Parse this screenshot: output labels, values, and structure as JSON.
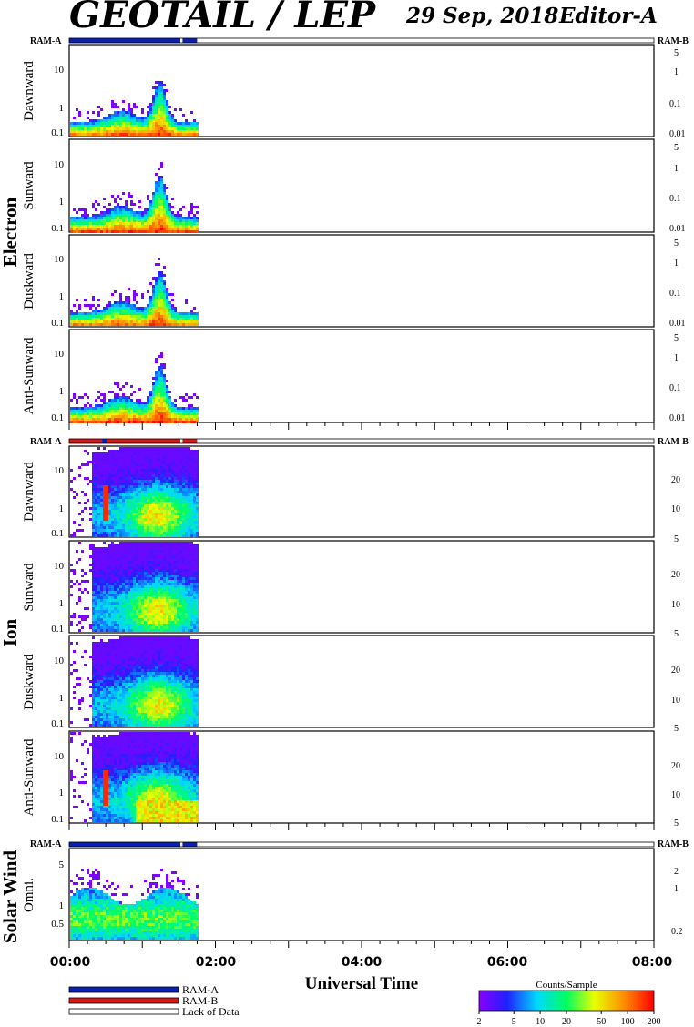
{
  "header": {
    "title": "GEOTAIL / LEP",
    "date": "29 Sep, 2018",
    "editor": "Editor-A"
  },
  "colors": {
    "ram_a": "#0a1fb4",
    "ram_b": "#d81818",
    "lack": "#ffffff"
  },
  "chart_data": {
    "type": "heatmap",
    "x_axis": {
      "label": "Universal Time",
      "range_hours": [
        0,
        8
      ],
      "tick_labels": [
        "00:00",
        "02:00",
        "04:00",
        "06:00",
        "08:00"
      ],
      "data_end_hour": 1.75
    },
    "groups": [
      {
        "name": "Electron",
        "ram_bar": {
          "left": "RAM-A",
          "right": "RAM-B",
          "segments": [
            {
              "start": 0.0,
              "end": 1.52,
              "mode": "RAM-A"
            },
            {
              "start": 1.52,
              "end": 1.55,
              "mode": "Lack of Data"
            },
            {
              "start": 1.55,
              "end": 1.75,
              "mode": "RAM-A"
            },
            {
              "start": 1.75,
              "end": 8.0,
              "mode": "Lack of Data"
            }
          ]
        },
        "panels": [
          {
            "label": "Dawnward",
            "left_ticks": [
              "0.1",
              "1",
              "10"
            ],
            "right_ticks": [
              "0.01",
              "0.1",
              "1",
              "5"
            ]
          },
          {
            "label": "Sunward",
            "left_ticks": [
              "0.1",
              "1",
              "10"
            ],
            "right_ticks": [
              "0.01",
              "0.1",
              "1",
              "5"
            ]
          },
          {
            "label": "Duskward",
            "left_ticks": [
              "0.1",
              "1",
              "10"
            ],
            "right_ticks": [
              "0.01",
              "0.1",
              "1",
              "5"
            ]
          },
          {
            "label": "Anti-Sunward",
            "left_ticks": [
              "0.1",
              "1",
              "10"
            ],
            "right_ticks": [
              "0.01",
              "0.1",
              "1",
              "5"
            ]
          }
        ]
      },
      {
        "name": "Ion",
        "ram_bar": {
          "left": "RAM-A",
          "right": "RAM-B",
          "segments": [
            {
              "start": 0.0,
              "end": 0.45,
              "mode": "RAM-B"
            },
            {
              "start": 0.45,
              "end": 0.52,
              "mode": "RAM-A"
            },
            {
              "start": 0.52,
              "end": 1.52,
              "mode": "RAM-B"
            },
            {
              "start": 1.52,
              "end": 1.55,
              "mode": "Lack of Data"
            },
            {
              "start": 1.55,
              "end": 1.75,
              "mode": "RAM-B"
            },
            {
              "start": 1.75,
              "end": 8.0,
              "mode": "Lack of Data"
            }
          ]
        },
        "panels": [
          {
            "label": "Dawnward",
            "left_ticks": [
              "0.1",
              "1",
              "10"
            ],
            "right_ticks": [
              "5",
              "10",
              "20"
            ]
          },
          {
            "label": "Sunward",
            "left_ticks": [
              "0.1",
              "1",
              "10"
            ],
            "right_ticks": [
              "5",
              "10",
              "20"
            ]
          },
          {
            "label": "Duskward",
            "left_ticks": [
              "0.1",
              "1",
              "10"
            ],
            "right_ticks": [
              "5",
              "10",
              "20"
            ]
          },
          {
            "label": "Anti-Sunward",
            "left_ticks": [
              "0.1",
              "1",
              "10"
            ],
            "right_ticks": [
              "5",
              "10",
              "20"
            ]
          }
        ]
      },
      {
        "name": "Solar Wind",
        "ram_bar": {
          "left": "RAM-A",
          "right": "RAM-B",
          "segments": [
            {
              "start": 0.0,
              "end": 1.52,
              "mode": "RAM-A"
            },
            {
              "start": 1.52,
              "end": 1.55,
              "mode": "Lack of Data"
            },
            {
              "start": 1.55,
              "end": 1.75,
              "mode": "RAM-A"
            },
            {
              "start": 1.75,
              "end": 8.0,
              "mode": "Lack of Data"
            }
          ]
        },
        "panels": [
          {
            "label": "Omni.",
            "left_ticks": [
              "0.5",
              "1",
              "5"
            ],
            "right_ticks": [
              "0.2",
              "1",
              "2"
            ]
          }
        ]
      }
    ],
    "legend": {
      "items": [
        "RAM-A",
        "RAM-B",
        "Lack of Data"
      ]
    },
    "colorbar": {
      "title": "Counts/Sample",
      "tick_labels": [
        "2",
        "5",
        "10",
        "20",
        "50",
        "100",
        "200"
      ],
      "range": [
        2,
        200
      ],
      "scale": "log"
    }
  }
}
